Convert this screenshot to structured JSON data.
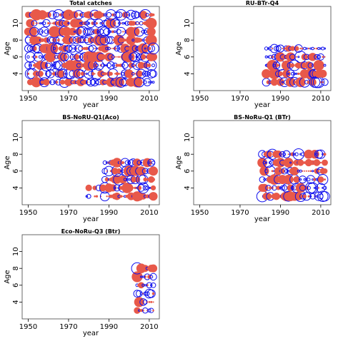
{
  "colors": {
    "positive": "#e8594a",
    "negative": "#1010ee",
    "frame": "#444444",
    "background": "#ffffff"
  },
  "chart_data": [
    {
      "type": "scatter",
      "title": "Total catches",
      "xlabel": "year",
      "ylabel": "Age",
      "xlim": [
        1947,
        2015
      ],
      "ylim": [
        2,
        12
      ],
      "xticks": [
        1950,
        1970,
        1990,
        2010
      ],
      "yticks": [
        4,
        6,
        8,
        10
      ],
      "years": [
        1950,
        2012
      ],
      "ages": [
        3,
        11
      ],
      "pattern": "dense"
    },
    {
      "type": "scatter",
      "title": "RU-BTr-Q4",
      "xlabel": "year",
      "ylabel": "Age",
      "xlim": [
        1947,
        2015
      ],
      "ylim": [
        2,
        12
      ],
      "xticks": [
        1950,
        1970,
        1990,
        2010
      ],
      "yticks": [
        4,
        6,
        8,
        10
      ],
      "years": [
        1983,
        2012
      ],
      "ages": [
        3,
        7
      ],
      "pattern": "moderate"
    },
    {
      "type": "scatter",
      "title": "BS-NoRU-Q1(Aco)",
      "xlabel": "year",
      "ylabel": "Age",
      "xlim": [
        1947,
        2015
      ],
      "ylim": [
        2,
        12
      ],
      "xticks": [
        1950,
        1970,
        1990,
        2010
      ],
      "yticks": [
        4,
        6,
        8,
        10
      ],
      "years": [
        1979,
        2012
      ],
      "ages": [
        3,
        7
      ],
      "pattern": "sparse-early"
    },
    {
      "type": "scatter",
      "title": "BS-NoRu-Q1 (BTr)",
      "xlabel": "year",
      "ylabel": "Age",
      "xlim": [
        1947,
        2015
      ],
      "ylim": [
        2,
        12
      ],
      "xticks": [
        1950,
        1970,
        1990,
        2010
      ],
      "yticks": [
        4,
        6,
        8,
        10
      ],
      "years": [
        1981,
        2012
      ],
      "ages": [
        3,
        8
      ],
      "pattern": "moderate"
    },
    {
      "type": "scatter",
      "title": "Eco-NoRu-Q3 (Btr)",
      "xlabel": "year",
      "ylabel": "Age",
      "xlim": [
        1947,
        2015
      ],
      "ylim": [
        2,
        12
      ],
      "xticks": [
        1950,
        1970,
        1990,
        2010
      ],
      "yticks": [
        4,
        6,
        8,
        10
      ],
      "years": [
        2004,
        2012
      ],
      "ages": [
        3,
        8
      ],
      "pattern": "moderate"
    }
  ]
}
